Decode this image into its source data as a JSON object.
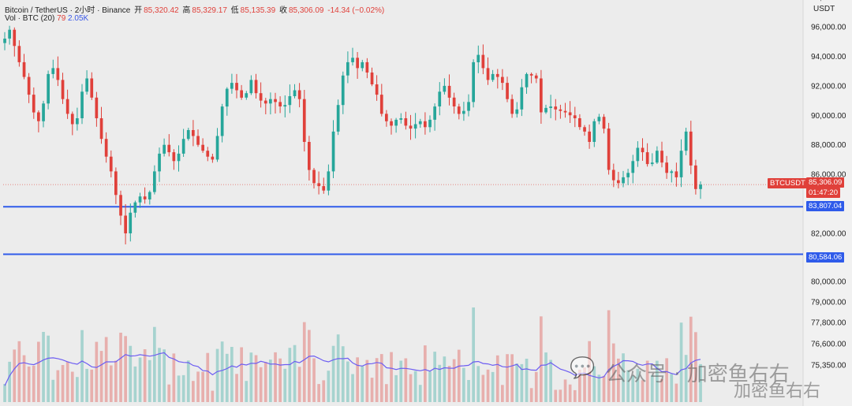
{
  "header": {
    "symbol": "Bitcoin / TetherUS · 2小时 · Binance",
    "open_label": "开",
    "open": "85,320.42",
    "high_label": "高",
    "high": "85,329.17",
    "low_label": "低",
    "low": "85,135.39",
    "close_label": "收",
    "close": "85,306.09",
    "change": "-14.34 (−0.02%)"
  },
  "volume_legend": {
    "label": "Vol · BTC (20)",
    "value1": "79",
    "value2": "2.05K"
  },
  "axis_unit": "USDT",
  "price_tag": {
    "symbol": "BTCUSDT",
    "price": "85,306.09",
    "countdown": "01:47:20"
  },
  "support_levels": [
    {
      "value": "83,807.04",
      "price": 83807.04
    },
    {
      "value": "80,584.06",
      "price": 80584.06
    }
  ],
  "watermark": {
    "text": "公众号 · 加密鱼右右",
    "brand": "加密鱼右右"
  },
  "colors": {
    "up": "#26a69a",
    "down": "#e0403a",
    "level": "#2f5bea",
    "volume_ma": "#6d5df2"
  },
  "chart_data": {
    "type": "candlestick",
    "price_axis_ticks": [
      "96,000.00",
      "94,000.00",
      "92,000.00",
      "90,000.00",
      "88,000.00",
      "86,000.00",
      "82,000.00",
      "80,000.00",
      "79,000.00",
      "77,800.00",
      "76,600.00",
      "75,350.00",
      "74,150.00"
    ],
    "price_range": [
      79500,
      96500
    ],
    "approx_close_series": [
      95200,
      95800,
      94700,
      93600,
      92600,
      91400,
      90200,
      89600,
      90800,
      92800,
      93200,
      92400,
      91100,
      90100,
      89400,
      89800,
      91600,
      92500,
      91200,
      89800,
      88400,
      87200,
      86200,
      84600,
      83200,
      82000,
      83400,
      84100,
      84500,
      84300,
      84800,
      86200,
      87400,
      88000,
      87500,
      86900,
      87400,
      88400,
      89000,
      88600,
      88000,
      87600,
      87200,
      87000,
      88600,
      90600,
      91800,
      92200,
      91700,
      91200,
      91500,
      92400,
      91500,
      91000,
      90800,
      91100,
      90900,
      90600,
      90700,
      91300,
      91700,
      91100,
      88200,
      86300,
      85400,
      85200,
      84900,
      86200,
      88900,
      90700,
      92700,
      93600,
      93900,
      93200,
      93600,
      92900,
      92100,
      91400,
      90100,
      89600,
      89300,
      89700,
      89800,
      89300,
      89100,
      89400,
      89600,
      89200,
      89700,
      90600,
      91600,
      92000,
      91200,
      90600,
      90100,
      90300,
      90900,
      93600,
      94100,
      93200,
      92400,
      92800,
      92600,
      92200,
      91100,
      90100,
      90400,
      91900,
      92800,
      92700,
      92500,
      90200,
      90500,
      90600,
      90400,
      90300,
      90200,
      90000,
      89800,
      89200,
      88900,
      88200,
      89600,
      89900,
      89100,
      86300,
      85600,
      85400,
      85800,
      86100,
      86900,
      87800,
      87500,
      86700,
      86800,
      87600,
      86800,
      86100,
      86200,
      85800,
      87600,
      88900,
      86600,
      85000,
      85300
    ]
  }
}
